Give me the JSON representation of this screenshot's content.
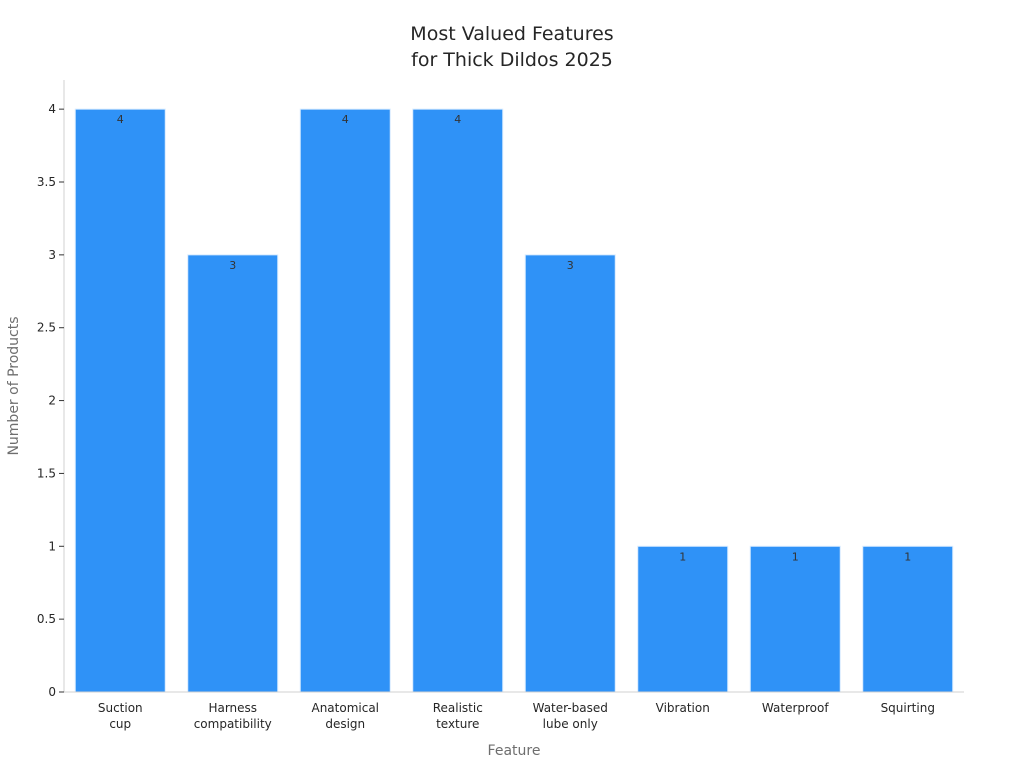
{
  "chart_data": {
    "type": "bar",
    "title": [
      "Most Valued Features",
      "for Thick Dildos 2025"
    ],
    "xlabel": "Feature",
    "ylabel": "Number of Products",
    "categories": [
      [
        "Suction",
        "cup"
      ],
      [
        "Harness",
        "compatibility"
      ],
      [
        "Anatomical",
        "design"
      ],
      [
        "Realistic",
        "texture"
      ],
      [
        "Water-based",
        "lube only"
      ],
      [
        "Vibration"
      ],
      [
        "Waterproof"
      ],
      [
        "Squirting"
      ]
    ],
    "values": [
      4,
      3,
      4,
      4,
      3,
      1,
      1,
      1
    ],
    "data_labels": [
      "4",
      "3",
      "4",
      "4",
      "3",
      "1",
      "1",
      "1"
    ],
    "ylim": [
      0,
      4.2
    ],
    "yticks": [
      0,
      0.5,
      1,
      1.5,
      2,
      2.5,
      3,
      3.5,
      4
    ],
    "ytick_labels": [
      "0",
      "0.5",
      "1",
      "1.5",
      "2",
      "2.5",
      "3",
      "3.5",
      "4"
    ],
    "grid": false,
    "bar_color": "#2f92f7",
    "bar_edge_color": "#d9ecff",
    "axis_color": "#d0d0d0"
  }
}
